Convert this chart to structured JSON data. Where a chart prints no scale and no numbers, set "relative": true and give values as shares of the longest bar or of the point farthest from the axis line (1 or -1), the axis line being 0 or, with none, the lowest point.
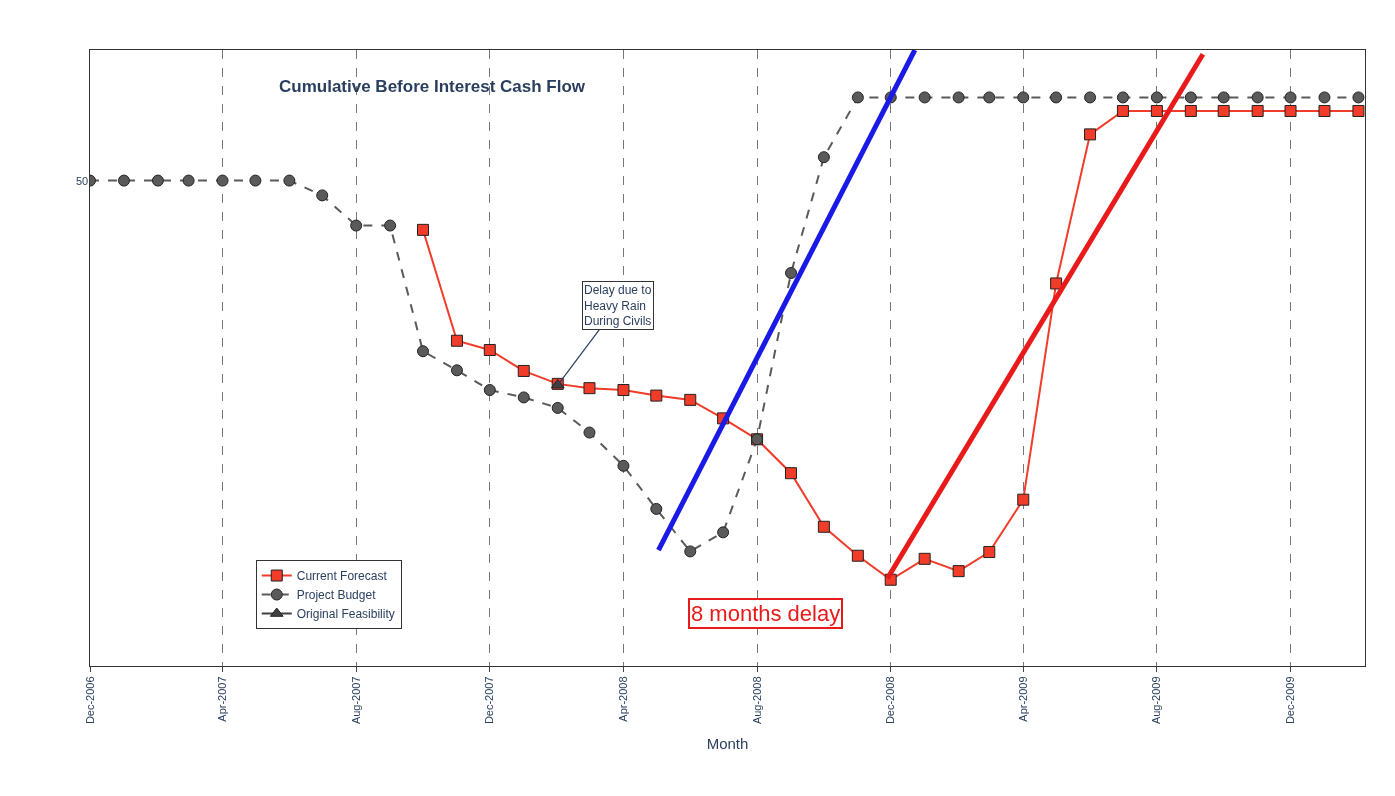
{
  "chart_data": {
    "type": "line",
    "title": "Cumulative Before Interest Cash Flow",
    "xlabel": "Month",
    "relative": true,
    "grid": "x",
    "legend": "bottom left",
    "xlim": [
      "2006-12-01",
      "2010-02-07"
    ],
    "xticks": [
      {
        "value": "2006-12",
        "label": "Dec-2006"
      },
      {
        "value": "2007-04",
        "label": "Apr-2007"
      },
      {
        "value": "2007-08",
        "label": "Aug-2007"
      },
      {
        "value": "2007-12",
        "label": "Dec-2007"
      },
      {
        "value": "2008-04",
        "label": "Apr-2008"
      },
      {
        "value": "2008-08",
        "label": "Aug-2008"
      },
      {
        "value": "2008-12",
        "label": "Dec-2008"
      },
      {
        "value": "2009-04",
        "label": "Apr-2009"
      },
      {
        "value": "2009-08",
        "label": "Aug-2009"
      },
      {
        "value": "2009-12",
        "label": "Dec-2009"
      }
    ],
    "series": [
      {
        "name": "Current Forecast",
        "color": "#f03c28",
        "marker": "square",
        "x": [
          "2007-10",
          "2007-11",
          "2007-12",
          "2008-01",
          "2008-02",
          "2008-03",
          "2008-04",
          "2008-05",
          "2008-06",
          "2008-07",
          "2008-08",
          "2008-09",
          "2008-10",
          "2008-11",
          "2008-12",
          "2009-01",
          "2009-02",
          "2009-03",
          "2009-04",
          "2009-05",
          "2009-06",
          "2009-07",
          "2009-08",
          "2009-09",
          "2009-10",
          "2009-11",
          "2009-12",
          "2010-01",
          "2010-02"
        ],
        "values": [
          0.708,
          0.528,
          0.513,
          0.479,
          0.458,
          0.451,
          0.448,
          0.439,
          0.432,
          0.402,
          0.368,
          0.313,
          0.226,
          0.179,
          0.14,
          0.174,
          0.154,
          0.185,
          0.27,
          0.621,
          0.863,
          0.901,
          0.901,
          0.901,
          0.901,
          0.901,
          0.901,
          0.901,
          0.901
        ]
      },
      {
        "name": "Project Budget",
        "color": "#5a5a5a",
        "marker": "circle",
        "line_style": "dashed",
        "x": [
          "2006-12",
          "2007-01",
          "2007-02",
          "2007-03",
          "2007-04",
          "2007-05",
          "2007-06",
          "2007-07",
          "2007-08",
          "2007-09",
          "2007-10",
          "2007-11",
          "2007-12",
          "2008-01",
          "2008-02",
          "2008-03",
          "2008-04",
          "2008-05",
          "2008-06",
          "2008-07",
          "2008-08",
          "2008-09",
          "2008-10",
          "2008-11",
          "2008-12",
          "2009-01",
          "2009-02",
          "2009-03",
          "2009-04",
          "2009-05",
          "2009-06",
          "2009-07",
          "2009-08",
          "2009-09",
          "2009-10",
          "2009-11",
          "2009-12",
          "2010-01",
          "2010-02"
        ],
        "values": [
          0.788,
          0.788,
          0.788,
          0.788,
          0.788,
          0.788,
          0.788,
          0.764,
          0.715,
          0.715,
          0.511,
          0.48,
          0.448,
          0.436,
          0.419,
          0.379,
          0.325,
          0.255,
          0.186,
          0.217,
          0.368,
          0.638,
          0.826,
          0.923,
          0.923,
          0.923,
          0.923,
          0.923,
          0.923,
          0.923,
          0.923,
          0.923,
          0.923,
          0.923,
          0.923,
          0.923,
          0.923,
          0.923,
          0.923
        ]
      },
      {
        "name": "Original Feasibility",
        "color": "#404040",
        "marker": "triangle",
        "x": [
          "2008-02"
        ],
        "values": [
          0.456
        ]
      },
      {
        "color": "#1a1ae6",
        "marker": "none",
        "x": [
          "2008-05-03",
          "2008-12-23"
        ],
        "values": [
          0.188,
          1.0
        ]
      },
      {
        "color": "#e81a1a",
        "marker": "none",
        "x": [
          "2008-11-28",
          "2009-09-12"
        ],
        "values": [
          0.142,
          0.993
        ]
      }
    ],
    "annotations": [
      {
        "text": "Delay due to\nHeavy Rain\nDuring Civils",
        "x": "2008-02",
        "y": 0.456
      },
      "8 months delay",
      {
        "text": "50",
        "y": 0.788
      }
    ]
  }
}
